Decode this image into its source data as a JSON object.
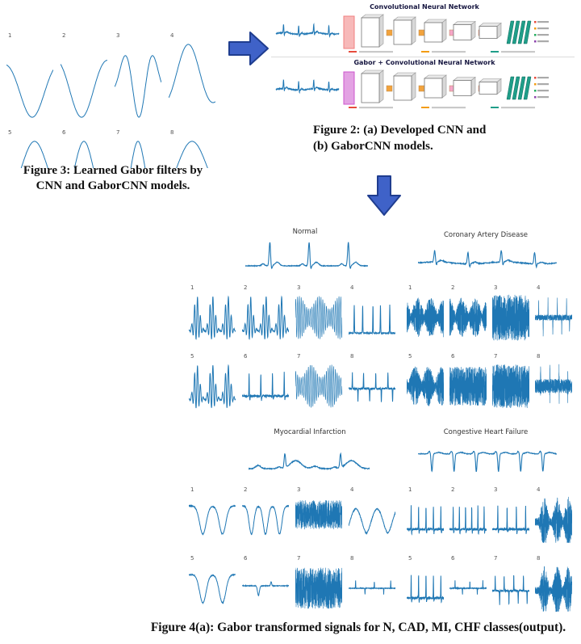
{
  "colors": {
    "signal": "#1f77b4",
    "arrow_fill": "#3f62c8",
    "arrow_stroke": "#1f3d8f",
    "accent_a": "#f08080",
    "accent_b": "#cc55cc",
    "teal": "#1f9e89"
  },
  "figure3": {
    "caption_line1": "Figure 3: Learned Gabor filters by",
    "caption_line2": "CNN and GaborCNN models.",
    "cells": [
      {
        "label": "1",
        "sig": "gabor",
        "f": 0.72,
        "c": 0.55,
        "s": 0.5,
        "inv": 1
      },
      {
        "label": "2",
        "sig": "gabor",
        "f": 0.8,
        "c": 0.45,
        "s": 0.55,
        "inv": 1
      },
      {
        "label": "3",
        "sig": "gabor",
        "f": 1.6,
        "c": 0.52,
        "s": 0.35,
        "inv": 1
      },
      {
        "label": "4",
        "sig": "gabor",
        "f": 0.85,
        "c": 0.42,
        "s": 0.55,
        "inv": -1
      },
      {
        "label": "5",
        "sig": "gabor",
        "f": 0.7,
        "c": 0.6,
        "s": 0.5,
        "inv": -1
      },
      {
        "label": "6",
        "sig": "gabor",
        "f": 1.0,
        "c": 0.5,
        "s": 0.4,
        "inv": -1
      },
      {
        "label": "7",
        "sig": "gabor",
        "f": 1.3,
        "c": 0.5,
        "s": 0.25,
        "inv": -1
      },
      {
        "label": "8",
        "sig": "gabor",
        "f": 0.6,
        "c": 0.5,
        "s": 0.6,
        "inv": -1
      }
    ]
  },
  "figure2": {
    "title_a": "Convolutional Neural Network",
    "title_b": "Gabor + Convolutional Neural Network",
    "caption_line1": "Figure 2: (a) Developed CNN and",
    "caption_line2": "(b) GaborCNN models."
  },
  "figure4": {
    "caption": "Figure 4(a): Gabor transformed signals for N, CAD, MI, CHF classes(output).",
    "groups": [
      {
        "title": "Normal",
        "sig": "ecgN"
      },
      {
        "title": "Coronary Artery Disease",
        "sig": "ecgCAD"
      },
      {
        "title": "Myocardial Infarction",
        "sig": "ecgMI"
      },
      {
        "title": "Congestive Heart Failure",
        "sig": "ecgCHF"
      }
    ],
    "grid1_left": [
      {
        "label": "1",
        "sig": "clusters",
        "seed": 11
      },
      {
        "label": "2",
        "sig": "clusters",
        "seed": 23
      },
      {
        "label": "3",
        "sig": "comb",
        "seed": 13
      },
      {
        "label": "4",
        "sig": "sparseSpikes",
        "seed": 14
      },
      {
        "label": "5",
        "sig": "clusters",
        "seed": 35
      },
      {
        "label": "6",
        "sig": "upSpikes",
        "k": 4,
        "seed": 16
      },
      {
        "label": "7",
        "sig": "comb",
        "seed": 47
      },
      {
        "label": "8",
        "sig": "midSpikes",
        "seed": 18
      }
    ],
    "grid1_right": [
      {
        "label": "1",
        "sig": "burstNoise",
        "seed": 21
      },
      {
        "label": "2",
        "sig": "burstNoise",
        "seed": 52
      },
      {
        "label": "3",
        "sig": "fullNoise",
        "amp": 0.95,
        "seed": 23
      },
      {
        "label": "4",
        "sig": "narrowSpikes",
        "seed": 24
      },
      {
        "label": "5",
        "sig": "burstNoise",
        "seed": 75
      },
      {
        "label": "6",
        "sig": "fullNoise",
        "amp": 0.8,
        "seed": 26
      },
      {
        "label": "7",
        "sig": "fullNoise",
        "amp": 0.9,
        "seed": 27
      },
      {
        "label": "8",
        "sig": "spikyNoise",
        "seed": 28
      }
    ],
    "grid2_left": [
      {
        "label": "1",
        "sig": "downU",
        "k": 2,
        "seed": 31
      },
      {
        "label": "2",
        "sig": "downU",
        "k": 3,
        "seed": 32
      },
      {
        "label": "3",
        "sig": "topNoise",
        "seed": 33
      },
      {
        "label": "4",
        "sig": "bumps",
        "seed": 34
      },
      {
        "label": "5",
        "sig": "downU",
        "k": 2,
        "seed": 85
      },
      {
        "label": "6",
        "sig": "flatDip",
        "seed": 36
      },
      {
        "label": "7",
        "sig": "fullNoise",
        "amp": 0.85,
        "seed": 37
      },
      {
        "label": "8",
        "sig": "flatTicks",
        "seed": 38
      }
    ],
    "grid2_right": [
      {
        "label": "1",
        "sig": "upSpikes",
        "k": 5,
        "seed": 41
      },
      {
        "label": "2",
        "sig": "upSpikes",
        "k": 6,
        "seed": 42
      },
      {
        "label": "3",
        "sig": "upSpikes",
        "k": 4,
        "seed": 43
      },
      {
        "label": "4",
        "sig": "clusterNoise",
        "seed": 44
      },
      {
        "label": "5",
        "sig": "upSpikes",
        "k": 5,
        "seed": 45
      },
      {
        "label": "6",
        "sig": "flatTicks",
        "seed": 46
      },
      {
        "label": "7",
        "sig": "midSpikes",
        "seed": 47
      },
      {
        "label": "8",
        "sig": "clusterNoise",
        "seed": 48
      }
    ]
  }
}
